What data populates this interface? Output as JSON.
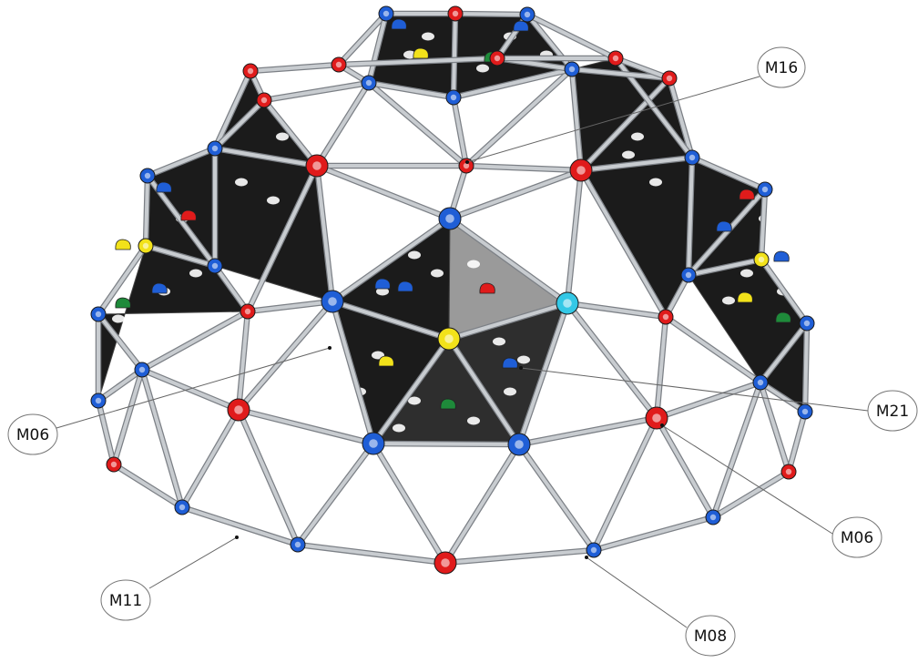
{
  "callouts": [
    {
      "id": "M16",
      "text": "M16"
    },
    {
      "id": "M06a",
      "text": "M06"
    },
    {
      "id": "M21",
      "text": "M21"
    },
    {
      "id": "M06b",
      "text": "M06"
    },
    {
      "id": "M11",
      "text": "M11"
    },
    {
      "id": "M08",
      "text": "M08"
    }
  ],
  "colors": {
    "strut": "#c8ccd0",
    "strut_edge": "#7c8086",
    "panel": "#1b1b1b",
    "panel_light": "#9a9a9a",
    "connector_blue": "#1f5ed6",
    "connector_red": "#e01b1b",
    "connector_yellow": "#f2e21a",
    "connector_cyan": "#33c8e6",
    "hold_green": "#1e8a3a",
    "leader": "#666666"
  }
}
